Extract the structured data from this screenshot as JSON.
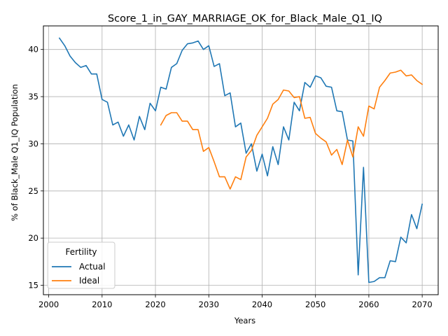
{
  "chart_data": {
    "type": "line",
    "title": "Score_1_in_GAY_MARRIAGE_OK_for_Black_Male_Q1_IQ",
    "xlabel": "Years",
    "ylabel": "% of Black_Male Q1_IQ Population",
    "xlim": [
      1999,
      2073
    ],
    "ylim": [
      14.0,
      42.5
    ],
    "xticks": [
      2000,
      2010,
      2020,
      2030,
      2040,
      2050,
      2060,
      2070
    ],
    "yticks": [
      15,
      20,
      25,
      30,
      35,
      40
    ],
    "grid": true,
    "legend": {
      "title": "Fertility",
      "placement": "lower-left"
    },
    "series": [
      {
        "name": "Actual",
        "color": "#1f77b4",
        "x": [
          2002,
          2003,
          2004,
          2005,
          2006,
          2007,
          2008,
          2009,
          2010,
          2011,
          2012,
          2013,
          2014,
          2015,
          2016,
          2017,
          2018,
          2019,
          2020,
          2021,
          2022,
          2023,
          2024,
          2025,
          2026,
          2027,
          2028,
          2029,
          2030,
          2031,
          2032,
          2033,
          2034,
          2035,
          2036,
          2037,
          2038,
          2039,
          2040,
          2041,
          2042,
          2043,
          2044,
          2045,
          2046,
          2047,
          2048,
          2049,
          2050,
          2051,
          2052,
          2053,
          2054,
          2055,
          2056,
          2057,
          2058,
          2059,
          2060,
          2061,
          2062,
          2063,
          2064,
          2065,
          2066,
          2067,
          2068,
          2069,
          2070
        ],
        "y": [
          41.2,
          40.4,
          39.3,
          38.6,
          38.1,
          38.3,
          37.4,
          37.4,
          34.7,
          34.4,
          32.0,
          32.3,
          30.8,
          32.0,
          30.4,
          32.9,
          31.5,
          34.3,
          33.5,
          36.0,
          35.8,
          38.1,
          38.5,
          39.9,
          40.6,
          40.7,
          40.9,
          40.0,
          40.4,
          38.2,
          38.5,
          35.1,
          35.4,
          31.8,
          32.2,
          29.0,
          30.0,
          27.1,
          28.9,
          26.6,
          29.7,
          27.8,
          31.8,
          30.4,
          34.4,
          33.5,
          36.5,
          36.0,
          37.2,
          37.0,
          36.1,
          36.0,
          33.5,
          33.4,
          30.4,
          30.3,
          16.1,
          27.5,
          15.3,
          15.4,
          15.8,
          15.8,
          17.6,
          17.5,
          20.1,
          19.5,
          22.5,
          21.0,
          23.6
        ]
      },
      {
        "name": "Ideal",
        "color": "#ff7f0e",
        "x": [
          2021,
          2022,
          2023,
          2024,
          2025,
          2026,
          2027,
          2028,
          2029,
          2030,
          2031,
          2032,
          2033,
          2034,
          2035,
          2036,
          2037,
          2038,
          2039,
          2040,
          2041,
          2042,
          2043,
          2044,
          2045,
          2046,
          2047,
          2048,
          2049,
          2050,
          2051,
          2052,
          2053,
          2054,
          2055,
          2056,
          2057,
          2058,
          2059,
          2060,
          2061,
          2062,
          2063,
          2064,
          2065,
          2066,
          2067,
          2068,
          2069,
          2070
        ],
        "y": [
          32.0,
          33.0,
          33.3,
          33.3,
          32.4,
          32.4,
          31.5,
          31.5,
          29.2,
          29.6,
          28.1,
          26.5,
          26.5,
          25.2,
          26.5,
          26.2,
          28.6,
          29.3,
          30.9,
          31.8,
          32.7,
          34.2,
          34.7,
          35.7,
          35.6,
          34.9,
          35.0,
          32.7,
          32.8,
          31.1,
          30.6,
          30.2,
          28.8,
          29.4,
          27.8,
          30.4,
          28.6,
          31.8,
          30.8,
          34.0,
          33.7,
          36.0,
          36.7,
          37.5,
          37.6,
          37.8,
          37.2,
          37.3,
          36.7,
          36.3
        ]
      }
    ]
  }
}
